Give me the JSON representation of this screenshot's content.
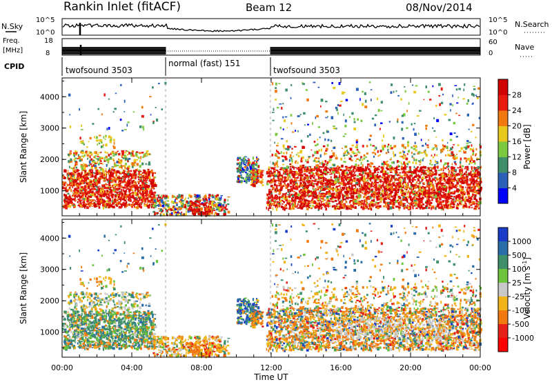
{
  "header": {
    "station": "Rankin Inlet (fitACF)",
    "beam": "Beam 12",
    "date": "08/Nov/2014"
  },
  "top_panels": {
    "nsky_label": "N.Sky",
    "nsky_ticks": [
      "10^5",
      "10^0"
    ],
    "nsearch_label": "N.Search",
    "nsearch_ticks": [
      "10^5",
      "10^0"
    ],
    "freq_label_1": "Freq.",
    "freq_label_2": "[MHz]",
    "freq_ticks": [
      "18",
      "8"
    ],
    "nave_label": "Nave",
    "nave_ticks": [
      "60",
      "0"
    ],
    "cpid_label": "CPID",
    "modes": [
      {
        "label": "twofsound 3503",
        "start_h": 0,
        "end_h": 6
      },
      {
        "label": "normal (fast) 151",
        "start_h": 6,
        "end_h": 12
      },
      {
        "label": "twofsound 3503",
        "start_h": 12,
        "end_h": 24
      }
    ]
  },
  "chart_data": [
    {
      "type": "heatmap",
      "name": "power-panel",
      "ylabel": "Slant Range [km]",
      "yticks": [
        "1000",
        "2000",
        "3000",
        "4000"
      ],
      "y_values": [
        1000,
        2000,
        3000,
        4000
      ],
      "ylim": [
        200,
        4600
      ],
      "xlim": [
        0,
        24
      ],
      "colorbar_label": "Power [dB]",
      "colorbar_ticks": [
        "4",
        "8",
        "12",
        "16",
        "20",
        "24",
        "28"
      ],
      "colorbar_colors": [
        "#0000ff",
        "#2a60b8",
        "#3e8f6a",
        "#7cc840",
        "#e8c81c",
        "#f07a10",
        "#e81a10",
        "#d00000"
      ]
    },
    {
      "type": "heatmap",
      "name": "velocity-panel",
      "ylabel": "Slant Range [km]",
      "yticks": [
        "1000",
        "2000",
        "3000",
        "4000"
      ],
      "y_values": [
        1000,
        2000,
        3000,
        4000
      ],
      "ylim": [
        200,
        4600
      ],
      "xlim": [
        0,
        24
      ],
      "xlabel": "Time UT",
      "xticks": [
        "00:00",
        "04:00",
        "08:00",
        "12:00",
        "16:00",
        "20:00",
        "00:00"
      ],
      "x_values": [
        0,
        4,
        8,
        12,
        16,
        20,
        24
      ],
      "colorbar_label": "Velocity [m s^-1]",
      "colorbar_ticks": [
        "1000",
        "500",
        "100",
        "25",
        "-25",
        "-100",
        "-500",
        "-1000"
      ],
      "colorbar_colors": [
        "#1a3cc8",
        "#2a6ea8",
        "#3e8f6a",
        "#6cc43c",
        "#c8c8c8",
        "#f0b418",
        "#f07a10",
        "#e8201a",
        "#ff0000"
      ]
    }
  ]
}
